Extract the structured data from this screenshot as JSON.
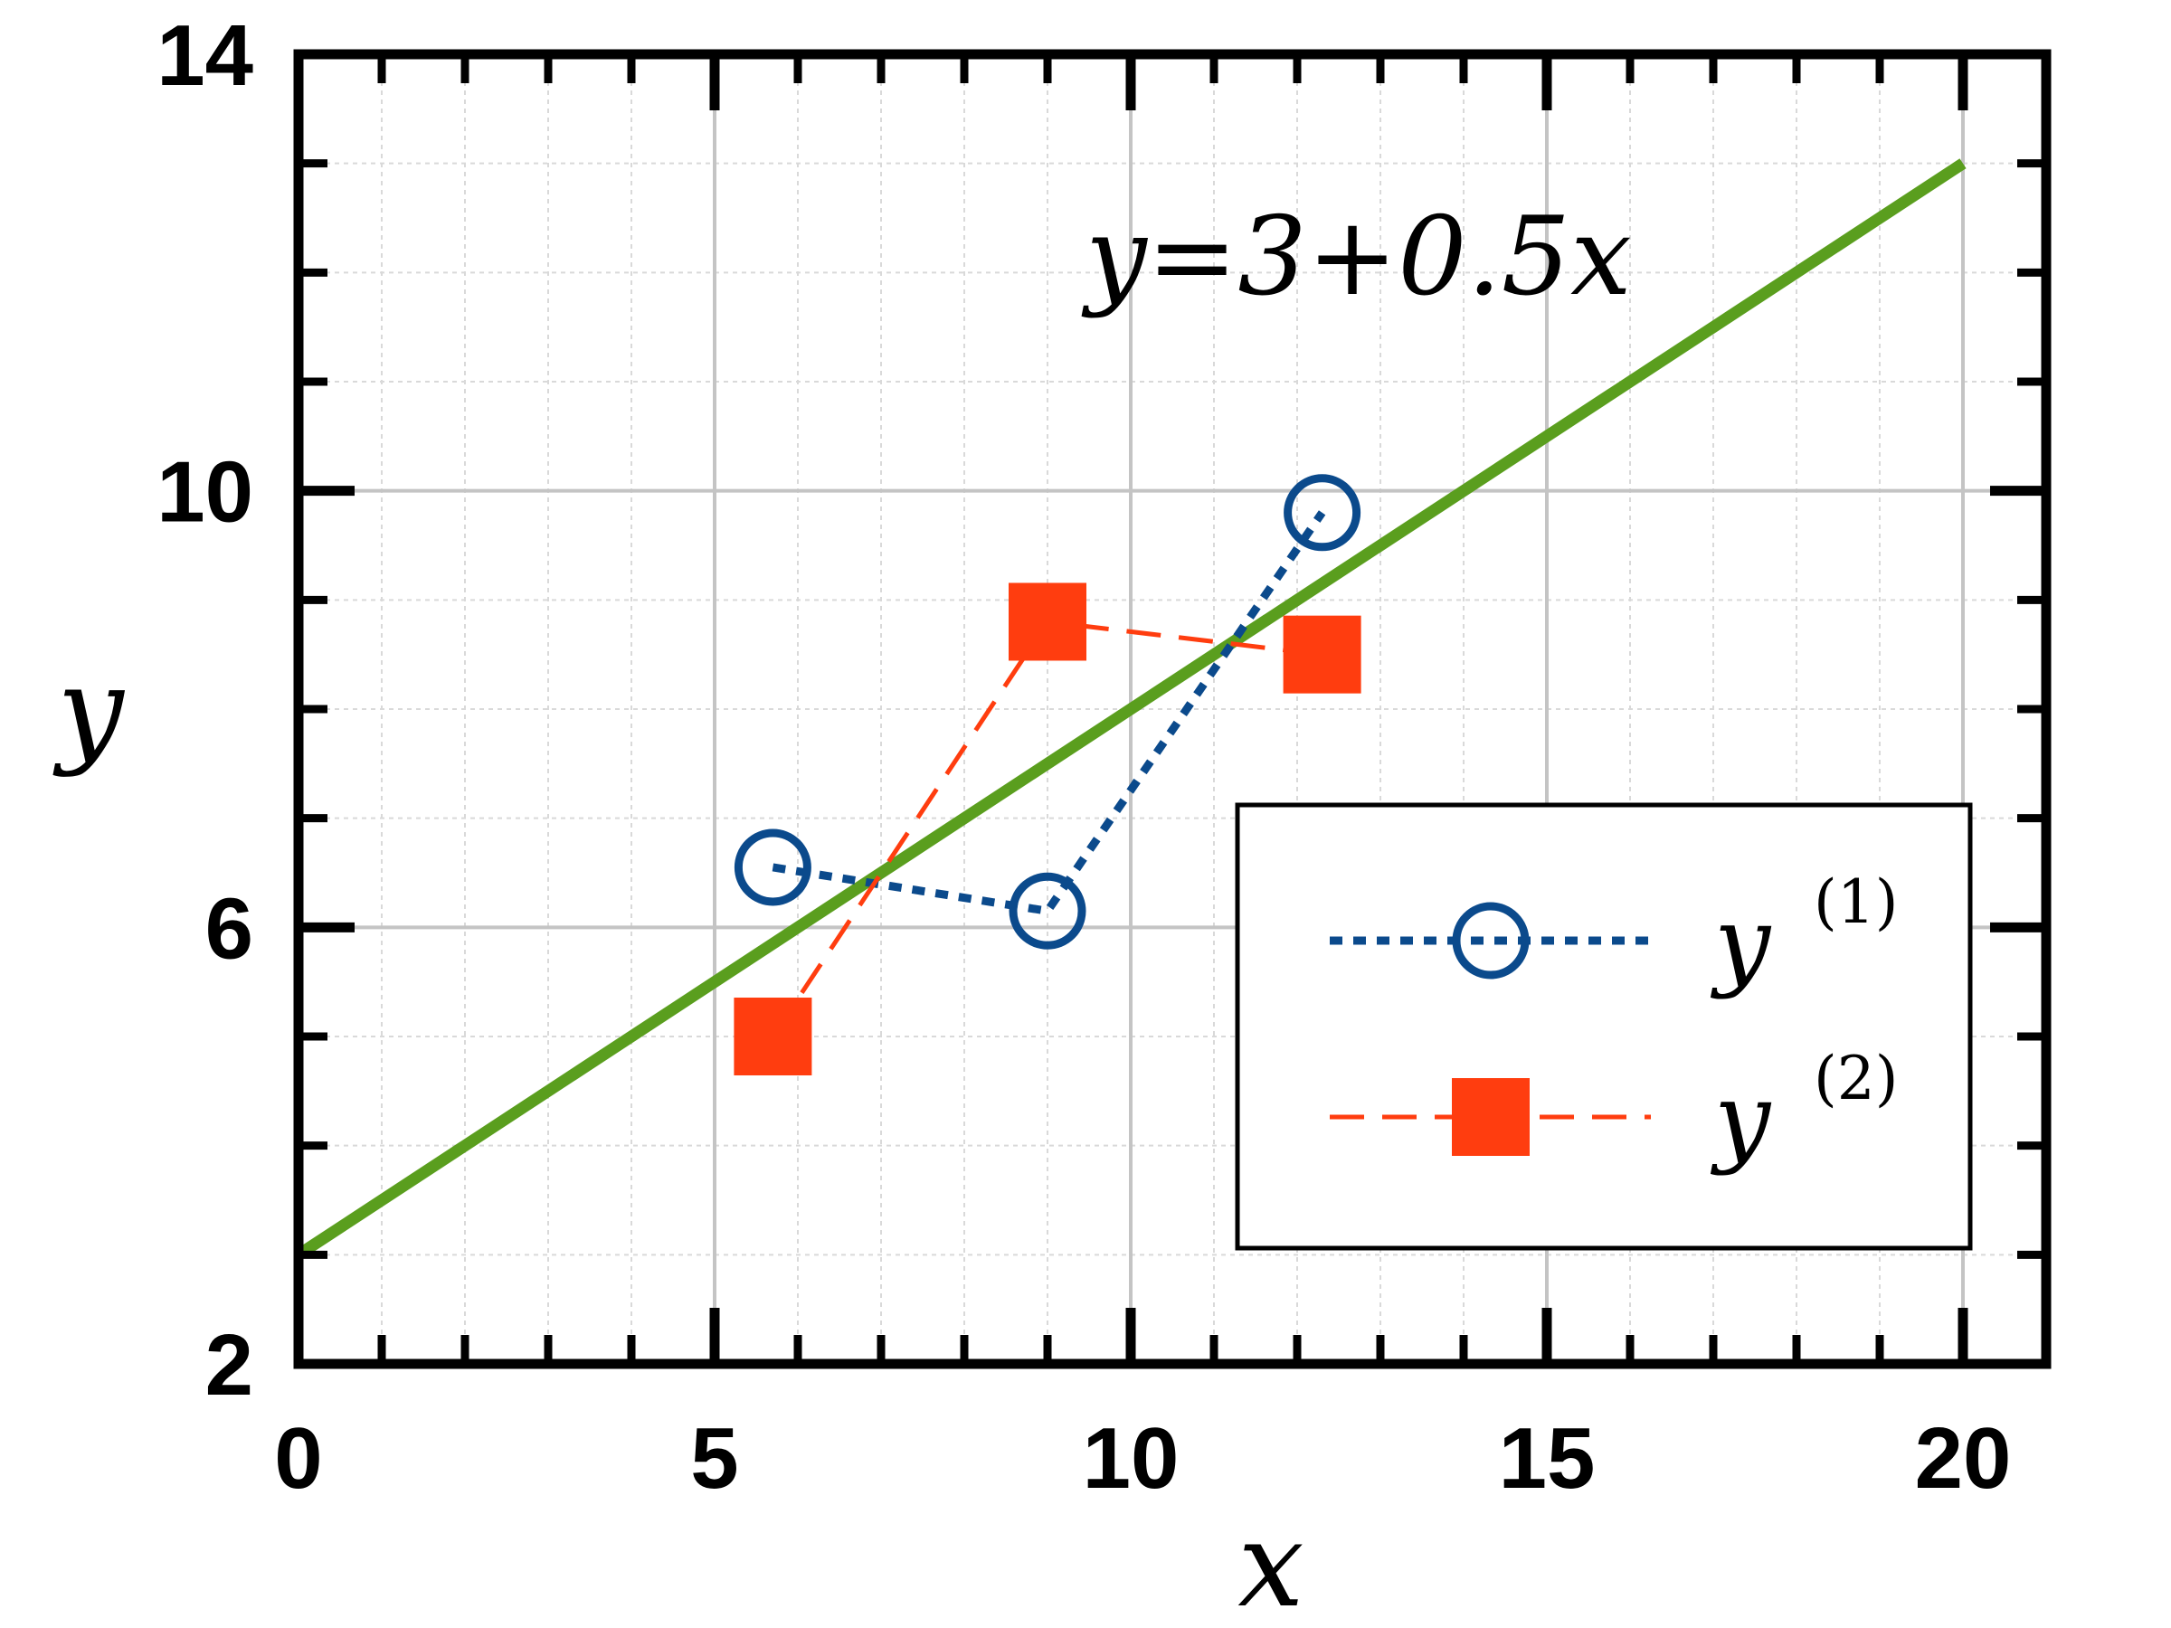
{
  "chart_data": {
    "type": "line",
    "xlabel": "x",
    "ylabel": "y",
    "xlim": [
      0,
      21
    ],
    "ylim": [
      2,
      14
    ],
    "x_ticks": [
      0,
      5,
      10,
      15,
      20
    ],
    "x_tick_labels": [
      "0",
      "5",
      "10",
      "15",
      "20"
    ],
    "y_ticks": [
      2,
      6,
      10,
      14
    ],
    "y_tick_labels": [
      "2",
      "6",
      "10",
      "14"
    ],
    "x_minor_step": 1,
    "y_minor_step": 1,
    "grid": true,
    "legend_position": "bottom-right",
    "annotation": "y=3+0.5x",
    "fit_line": {
      "x": [
        0,
        20
      ],
      "y": [
        3,
        13
      ],
      "color": "#5a9e1e"
    },
    "series": [
      {
        "legend_label": "y",
        "legend_superscript": "(1)",
        "color": "#0b4a8c",
        "marker": "open-circle",
        "line_style": "dotted",
        "x": [
          5.7,
          9.0,
          12.3
        ],
        "y": [
          6.55,
          6.15,
          9.8
        ]
      },
      {
        "legend_label": "y",
        "legend_superscript": "(2)",
        "color": "#ff3d0f",
        "marker": "filled-square",
        "line_style": "dashed",
        "x": [
          5.7,
          9.0,
          12.3
        ],
        "y": [
          5.0,
          8.8,
          8.5
        ]
      }
    ]
  }
}
